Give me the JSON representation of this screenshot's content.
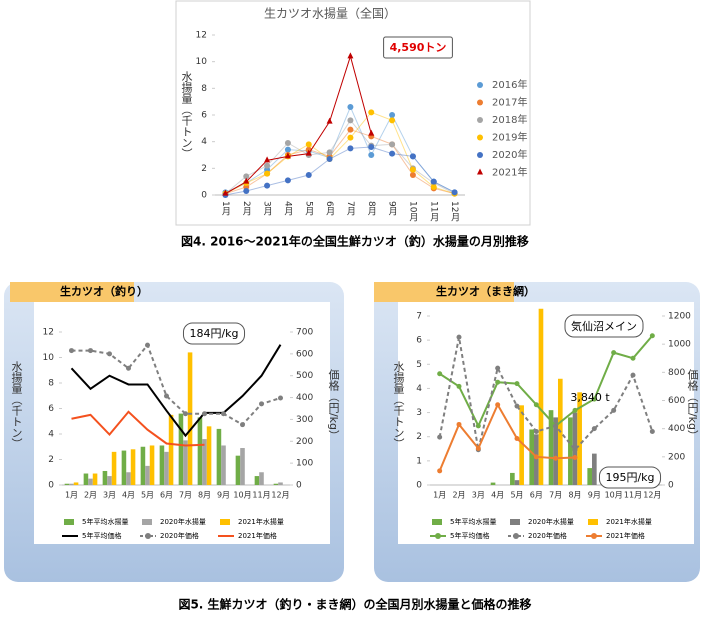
{
  "captions": [
    "図4. 2016～2021年の全国生鮮カツオ（釣）水揚量の月別推移",
    "図5. 生鮮カツオ（釣り・まき網）の全国月別水揚量と価格の推移"
  ],
  "chart_data": [
    {
      "type": "line",
      "title": "生カツオ水揚量（全国）",
      "y_label": "水揚量（千トン）",
      "categories": [
        "1月",
        "2月",
        "3月",
        "4月",
        "5月",
        "6月",
        "7月",
        "8月",
        "9月",
        "10月",
        "11月",
        "12月"
      ],
      "ylim": [
        0,
        12
      ],
      "yticks": [
        0,
        2,
        4,
        6,
        8,
        10,
        12
      ],
      "annotations": [
        {
          "text": "4,590トン",
          "color": "#e00000"
        }
      ],
      "series": [
        {
          "name": "2016年",
          "color": "#5b9bd5",
          "kind": "line",
          "marker": "circle",
          "values": [
            0.2,
            0.9,
            1.9,
            3.4,
            3.3,
            2.8,
            6.6,
            3.0,
            6.0,
            2.9,
            1.0,
            0.2
          ]
        },
        {
          "name": "2017年",
          "color": "#ed7d31",
          "kind": "line",
          "marker": "circle",
          "values": [
            0.1,
            0.6,
            1.6,
            3.0,
            3.4,
            2.9,
            4.9,
            4.4,
            3.8,
            1.5,
            0.5,
            0.1
          ]
        },
        {
          "name": "2018年",
          "color": "#a5a5a5",
          "kind": "line",
          "marker": "circle",
          "values": [
            0.1,
            1.4,
            2.2,
            3.9,
            3.0,
            3.2,
            5.6,
            3.7,
            3.8,
            2.0,
            0.9,
            0.1
          ]
        },
        {
          "name": "2019年",
          "color": "#ffc000",
          "kind": "line",
          "marker": "circle",
          "values": [
            0.1,
            0.9,
            1.6,
            2.9,
            3.8,
            2.7,
            4.3,
            6.2,
            5.6,
            1.9,
            0.6,
            0.1
          ]
        },
        {
          "name": "2020年",
          "color": "#4472c4",
          "kind": "line",
          "marker": "circle",
          "values": [
            0.0,
            0.3,
            0.7,
            1.1,
            1.5,
            2.7,
            3.5,
            3.6,
            3.1,
            2.9,
            1.0,
            0.2
          ]
        },
        {
          "name": "2021年",
          "color": "#c00000",
          "kind": "line",
          "marker": "triangle",
          "values": [
            0.1,
            1.0,
            2.6,
            2.9,
            3.1,
            5.5,
            10.4,
            4.6,
            null,
            null,
            null,
            null
          ]
        }
      ]
    },
    {
      "type": "combo",
      "title": "生カツオ（釣り）",
      "y_label": "水揚量（千トン）",
      "y2_label": "価格（円/kg）",
      "categories": [
        "1月",
        "2月",
        "3月",
        "4月",
        "5月",
        "6月",
        "7月",
        "8月",
        "9月",
        "10月",
        "11月",
        "12月"
      ],
      "ylim": [
        0,
        12
      ],
      "yticks": [
        0,
        2,
        4,
        6,
        8,
        10,
        12
      ],
      "y2lim": [
        0,
        700
      ],
      "y2ticks": [
        0,
        100,
        200,
        300,
        400,
        500,
        600,
        700
      ],
      "annotations": [
        {
          "text": "184円/kg",
          "color": "#000000"
        }
      ],
      "series": [
        {
          "name": "5年平均水揚量",
          "color": "#70ad47",
          "kind": "bar",
          "values": [
            0.1,
            0.9,
            1.1,
            2.7,
            3.0,
            3.1,
            5.6,
            5.3,
            4.4,
            2.3,
            0.7,
            0.1
          ]
        },
        {
          "name": "2020年水揚量",
          "color": "#a5a5a5",
          "kind": "bar",
          "values": [
            0.1,
            0.5,
            0.7,
            1.0,
            1.5,
            2.6,
            3.5,
            3.6,
            3.1,
            2.9,
            1.0,
            0.2
          ]
        },
        {
          "name": "2021年水揚量",
          "color": "#ffc000",
          "kind": "bar",
          "values": [
            0.2,
            0.9,
            2.6,
            2.8,
            3.1,
            5.5,
            10.4,
            4.6,
            null,
            null,
            null,
            null
          ]
        },
        {
          "name": "5年平均価格",
          "color": "#000000",
          "kind": "line",
          "axis": "y2",
          "values": [
            534,
            440,
            500,
            460,
            460,
            340,
            226,
            330,
            330,
            407,
            500,
            642
          ]
        },
        {
          "name": "2020年価格",
          "color": "#7f7f7f",
          "kind": "line",
          "axis": "y2",
          "dashed": true,
          "marker": "circle",
          "values": [
            615,
            615,
            600,
            534,
            640,
            407,
            326,
            326,
            326,
            276,
            371,
            398
          ]
        },
        {
          "name": "2021年価格",
          "color": "#f4511e",
          "kind": "line",
          "axis": "y2",
          "values": [
            303,
            321,
            231,
            335,
            253,
            190,
            181,
            184,
            null,
            null,
            null,
            null
          ]
        }
      ]
    },
    {
      "type": "combo",
      "title": "生カツオ（まき網）",
      "y_label": "水揚量（千トン）",
      "y2_label": "価格（円/kg）",
      "categories": [
        "1月",
        "2月",
        "3月",
        "4月",
        "5月",
        "6月",
        "7月",
        "8月",
        "9月",
        "10月",
        "11月",
        "12月"
      ],
      "ylim": [
        0,
        7
      ],
      "yticks": [
        0,
        1,
        2,
        3,
        4,
        5,
        6,
        7
      ],
      "y2lim": [
        0,
        1200
      ],
      "y2ticks": [
        0,
        200,
        400,
        600,
        800,
        1000,
        1200
      ],
      "annotations": [
        {
          "text": "気仙沼メイン",
          "color": "#000000"
        },
        {
          "text": "3,840 t",
          "color": "#000000"
        },
        {
          "text": "195円/kg",
          "color": "#000000"
        }
      ],
      "series": [
        {
          "name": "5年平均水揚量",
          "color": "#70ad47",
          "kind": "bar",
          "values": [
            0,
            0,
            0,
            0.1,
            0.5,
            2.3,
            3.1,
            2.8,
            0.7,
            0.2,
            0,
            0
          ]
        },
        {
          "name": "2020年水揚量",
          "color": "#7f7f7f",
          "kind": "bar",
          "values": [
            0,
            0,
            0,
            0,
            0.2,
            2.1,
            2.8,
            3.0,
            1.3,
            0.2,
            0,
            0
          ]
        },
        {
          "name": "2021年水揚量",
          "color": "#ffc000",
          "kind": "bar",
          "values": [
            0,
            0,
            0,
            0,
            3.3,
            7.3,
            4.4,
            3.84,
            null,
            null,
            null,
            null
          ]
        },
        {
          "name": "5年平均価格",
          "color": "#70ad47",
          "kind": "line",
          "axis": "y2",
          "marker": "circle",
          "values": [
            790,
            700,
            420,
            730,
            720,
            570,
            420,
            530,
            610,
            940,
            900,
            1060
          ]
        },
        {
          "name": "2020年価格",
          "color": "#7f7f7f",
          "kind": "line",
          "axis": "y2",
          "dashed": true,
          "marker": "circle",
          "values": [
            340,
            1050,
            250,
            830,
            560,
            380,
            420,
            250,
            400,
            530,
            780,
            380
          ]
        },
        {
          "name": "2021年価格",
          "color": "#ed7d31",
          "kind": "line",
          "axis": "y2",
          "marker": "circle",
          "values": [
            100,
            430,
            260,
            570,
            330,
            200,
            190,
            195,
            null,
            null,
            null,
            null
          ]
        }
      ]
    }
  ]
}
